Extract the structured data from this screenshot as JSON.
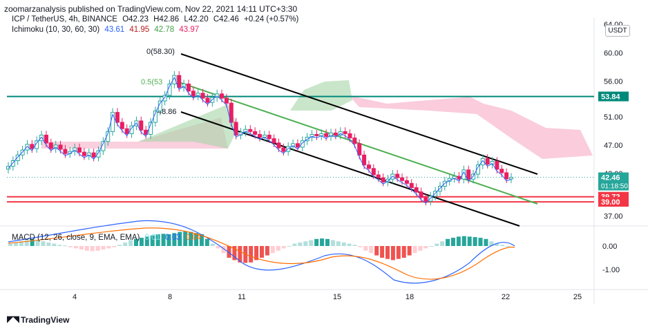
{
  "header": {
    "published": "zoomarzanalysis published on TradingView.com, Nov 22, 2021 14:11 UTC+3:30"
  },
  "legend": {
    "symbol": "ICP / TetherUS, 4h, BINANCE",
    "open": "O42.23",
    "high": "H42.86",
    "low": "L42.20",
    "close": "C42.46",
    "change": "+0.24 (+0.57%)",
    "ichimoku_label": "Ichimoku (10, 30, 60, 30)",
    "ichimoku_values": [
      "43.61",
      "41.95",
      "42.78",
      "43.97"
    ],
    "macd_label": "MACD (12, 26, close, 9, EMA, EMA)",
    "macd_values": [
      "0.01",
      "0.03",
      "0.04"
    ]
  },
  "currency_button": "USDT",
  "brand": "TradingView",
  "colors": {
    "up": "#26a69a",
    "down": "#ef5350",
    "conversion": "#2962ff",
    "base": "#b71c1c",
    "span_a": "#43a047",
    "span_b": "#e91e63",
    "channel": "#000000",
    "mid": "#4caf50",
    "teal_level": "#00897b",
    "red_level": "#f23645"
  },
  "annotations": {
    "fib_top": "0(58.30)",
    "fib_mid": "0.5(53",
    "fib_low": "48.86"
  },
  "chart_data": {
    "type": "candlestick",
    "price_axis": {
      "min": 37,
      "max": 64,
      "ticks": [
        "64.00",
        "60.00",
        "56.00",
        "51.00",
        "47.00",
        "43.00",
        "37.00"
      ]
    },
    "price_labels": [
      {
        "value": 53.84,
        "text": "53.84",
        "color": "#00897b"
      },
      {
        "value": 42.46,
        "text": "42.46",
        "subtext": "01:18:50",
        "color": "#26a69a"
      },
      {
        "value": 39.72,
        "text": "39.72",
        "color": "#f23645"
      },
      {
        "value": 39.0,
        "text": "39.00",
        "color": "#f23645"
      }
    ],
    "horizontal_levels": [
      53.84,
      39.72,
      39.0
    ],
    "x_ticks": [
      "4",
      "8",
      "11",
      "15",
      "18",
      "22",
      "25"
    ],
    "macd_axis": {
      "ticks": [
        "0.00",
        "-1.00"
      ]
    },
    "candles_close": [
      44.0,
      44.8,
      45.6,
      46.3,
      47.1,
      46.5,
      47.6,
      48.4,
      47.3,
      46.5,
      47.0,
      46.4,
      45.8,
      46.1,
      46.6,
      46.0,
      45.5,
      45.9,
      45.3,
      46.2,
      47.5,
      48.9,
      51.6,
      50.2,
      49.3,
      48.6,
      49.7,
      50.4,
      49.1,
      48.5,
      50.2,
      51.8,
      53.2,
      54.0,
      55.6,
      56.8,
      55.1,
      55.6,
      54.6,
      53.9,
      54.3,
      53.6,
      53.0,
      53.7,
      54.2,
      53.6,
      52.9,
      50.2,
      48.4,
      48.8,
      49.2,
      48.9,
      48.5,
      48.1,
      48.4,
      47.9,
      47.3,
      46.6,
      46.1,
      46.8,
      47.2,
      46.7,
      47.6,
      48.1,
      48.5,
      48.3,
      48.6,
      48.2,
      48.7,
      48.4,
      48.9,
      48.6,
      48.0,
      47.2,
      45.6,
      44.2,
      43.7,
      42.8,
      42.4,
      41.8,
      42.2,
      42.9,
      42.4,
      42.0,
      41.6,
      41.0,
      40.4,
      39.6,
      39.1,
      39.8,
      40.5,
      41.2,
      41.9,
      42.3,
      42.6,
      42.2,
      43.5,
      42.2,
      42.9,
      44.2,
      45.1,
      44.3,
      44.7,
      43.6,
      43.1,
      42.23,
      42.46
    ],
    "macd_hist": [
      0.1,
      0.15,
      0.2,
      0.25,
      0.28,
      0.25,
      0.2,
      0.15,
      0.1,
      0.05,
      0.02,
      -0.05,
      -0.1,
      -0.15,
      -0.2,
      -0.22,
      -0.2,
      -0.15,
      -0.1,
      -0.05,
      0.05,
      0.15,
      0.25,
      0.3,
      0.35,
      0.4,
      0.45,
      0.5,
      0.52,
      0.5,
      0.55,
      0.6,
      0.62,
      0.6,
      0.55,
      0.5,
      0.3,
      0.1,
      -0.1,
      -0.3,
      -0.5,
      -0.6,
      -0.7,
      -0.72,
      -0.7,
      -0.6,
      -0.5,
      -0.4,
      -0.3,
      -0.2,
      -0.1,
      0.0,
      0.1,
      0.15,
      0.2,
      0.25,
      0.3,
      0.32,
      0.3,
      0.25,
      0.2,
      0.15,
      0.1,
      0.05,
      -0.05,
      -0.2,
      -0.3,
      -0.4,
      -0.5,
      -0.55,
      -0.6,
      -0.55,
      -0.5,
      -0.4,
      -0.3,
      -0.2,
      -0.1,
      0.0,
      0.1,
      0.2,
      0.3,
      0.35,
      0.4,
      0.42,
      0.4,
      0.38,
      0.35,
      0.3,
      0.2,
      0.1,
      0.05,
      0.0
    ]
  }
}
